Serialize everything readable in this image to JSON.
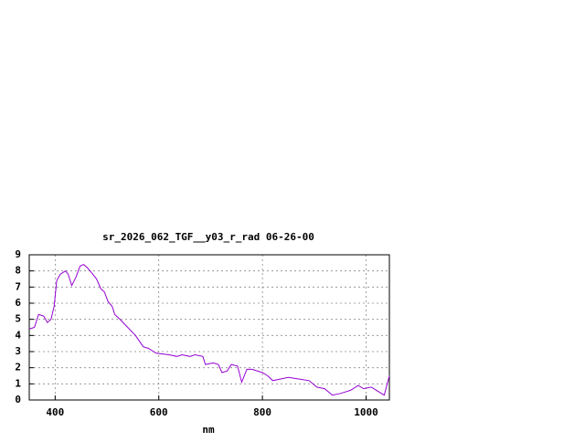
{
  "chart_data": {
    "type": "line",
    "title": "sr_2026_062_TGF__y03_r_rad 06-26-00",
    "x_label": "nm",
    "x": [
      350,
      360,
      368,
      378,
      385,
      392,
      398,
      403,
      410,
      420,
      425,
      432,
      440,
      448,
      455,
      462,
      470,
      480,
      488,
      495,
      502,
      510,
      515,
      525,
      540,
      555,
      570,
      580,
      595,
      620,
      635,
      645,
      660,
      670,
      685,
      690,
      705,
      715,
      722,
      732,
      740,
      752,
      760,
      770,
      780,
      800,
      810,
      820,
      835,
      850,
      870,
      890,
      905,
      920,
      935,
      950,
      970,
      985,
      995,
      1010,
      1020,
      1035,
      1045
    ],
    "series": [
      {
        "color": "#9400d3",
        "values": [
          4.4,
          4.5,
          5.3,
          5.2,
          4.8,
          5.0,
          5.8,
          7.4,
          7.8,
          8.0,
          7.8,
          7.1,
          7.6,
          8.3,
          8.4,
          8.2,
          7.9,
          7.5,
          6.9,
          6.7,
          6.1,
          5.8,
          5.3,
          5.0,
          4.5,
          4.0,
          3.3,
          3.2,
          2.9,
          2.8,
          2.7,
          2.8,
          2.7,
          2.8,
          2.7,
          2.2,
          2.3,
          2.2,
          1.7,
          1.8,
          2.2,
          2.1,
          1.1,
          1.9,
          1.9,
          1.7,
          1.5,
          1.2,
          1.3,
          1.4,
          1.3,
          1.2,
          0.8,
          0.7,
          0.3,
          0.4,
          0.6,
          0.9,
          0.7,
          0.8,
          0.6,
          0.3,
          1.5
        ]
      }
    ],
    "xlim": [
      350,
      1045
    ],
    "ylim": [
      0,
      9
    ],
    "xticks": [
      400,
      600,
      800,
      1000
    ],
    "yticks": [
      0,
      1,
      2,
      3,
      4,
      5,
      6,
      7,
      8,
      9
    ],
    "grid": true
  }
}
